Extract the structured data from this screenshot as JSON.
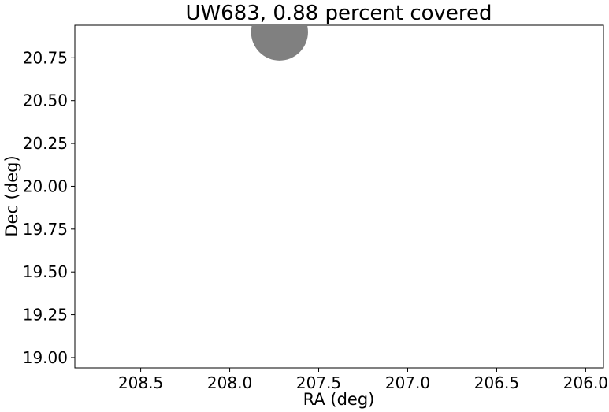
{
  "chart_data": {
    "type": "scatter",
    "title": "UW683, 0.88 percent covered",
    "xlabel": "RA (deg)",
    "ylabel": "Dec (deg)",
    "xlim": [
      208.87,
      205.9
    ],
    "ylim": [
      18.94,
      20.94
    ],
    "x_inverted": true,
    "x_ticks": [
      208.5,
      208.0,
      207.5,
      207.0,
      206.5,
      206.0
    ],
    "x_tick_labels": [
      "208.5",
      "208.0",
      "207.5",
      "207.0",
      "206.5",
      "206.0"
    ],
    "y_ticks": [
      19.0,
      19.25,
      19.5,
      19.75,
      20.0,
      20.25,
      20.5,
      20.75
    ],
    "y_tick_labels": [
      "19.00",
      "19.25",
      "19.50",
      "19.75",
      "20.00",
      "20.25",
      "20.50",
      "20.75"
    ],
    "grid": false,
    "points": [
      {
        "x": 207.72,
        "y": 20.9,
        "radius_deg": 0.16
      }
    ],
    "marker_color": "#808080"
  }
}
